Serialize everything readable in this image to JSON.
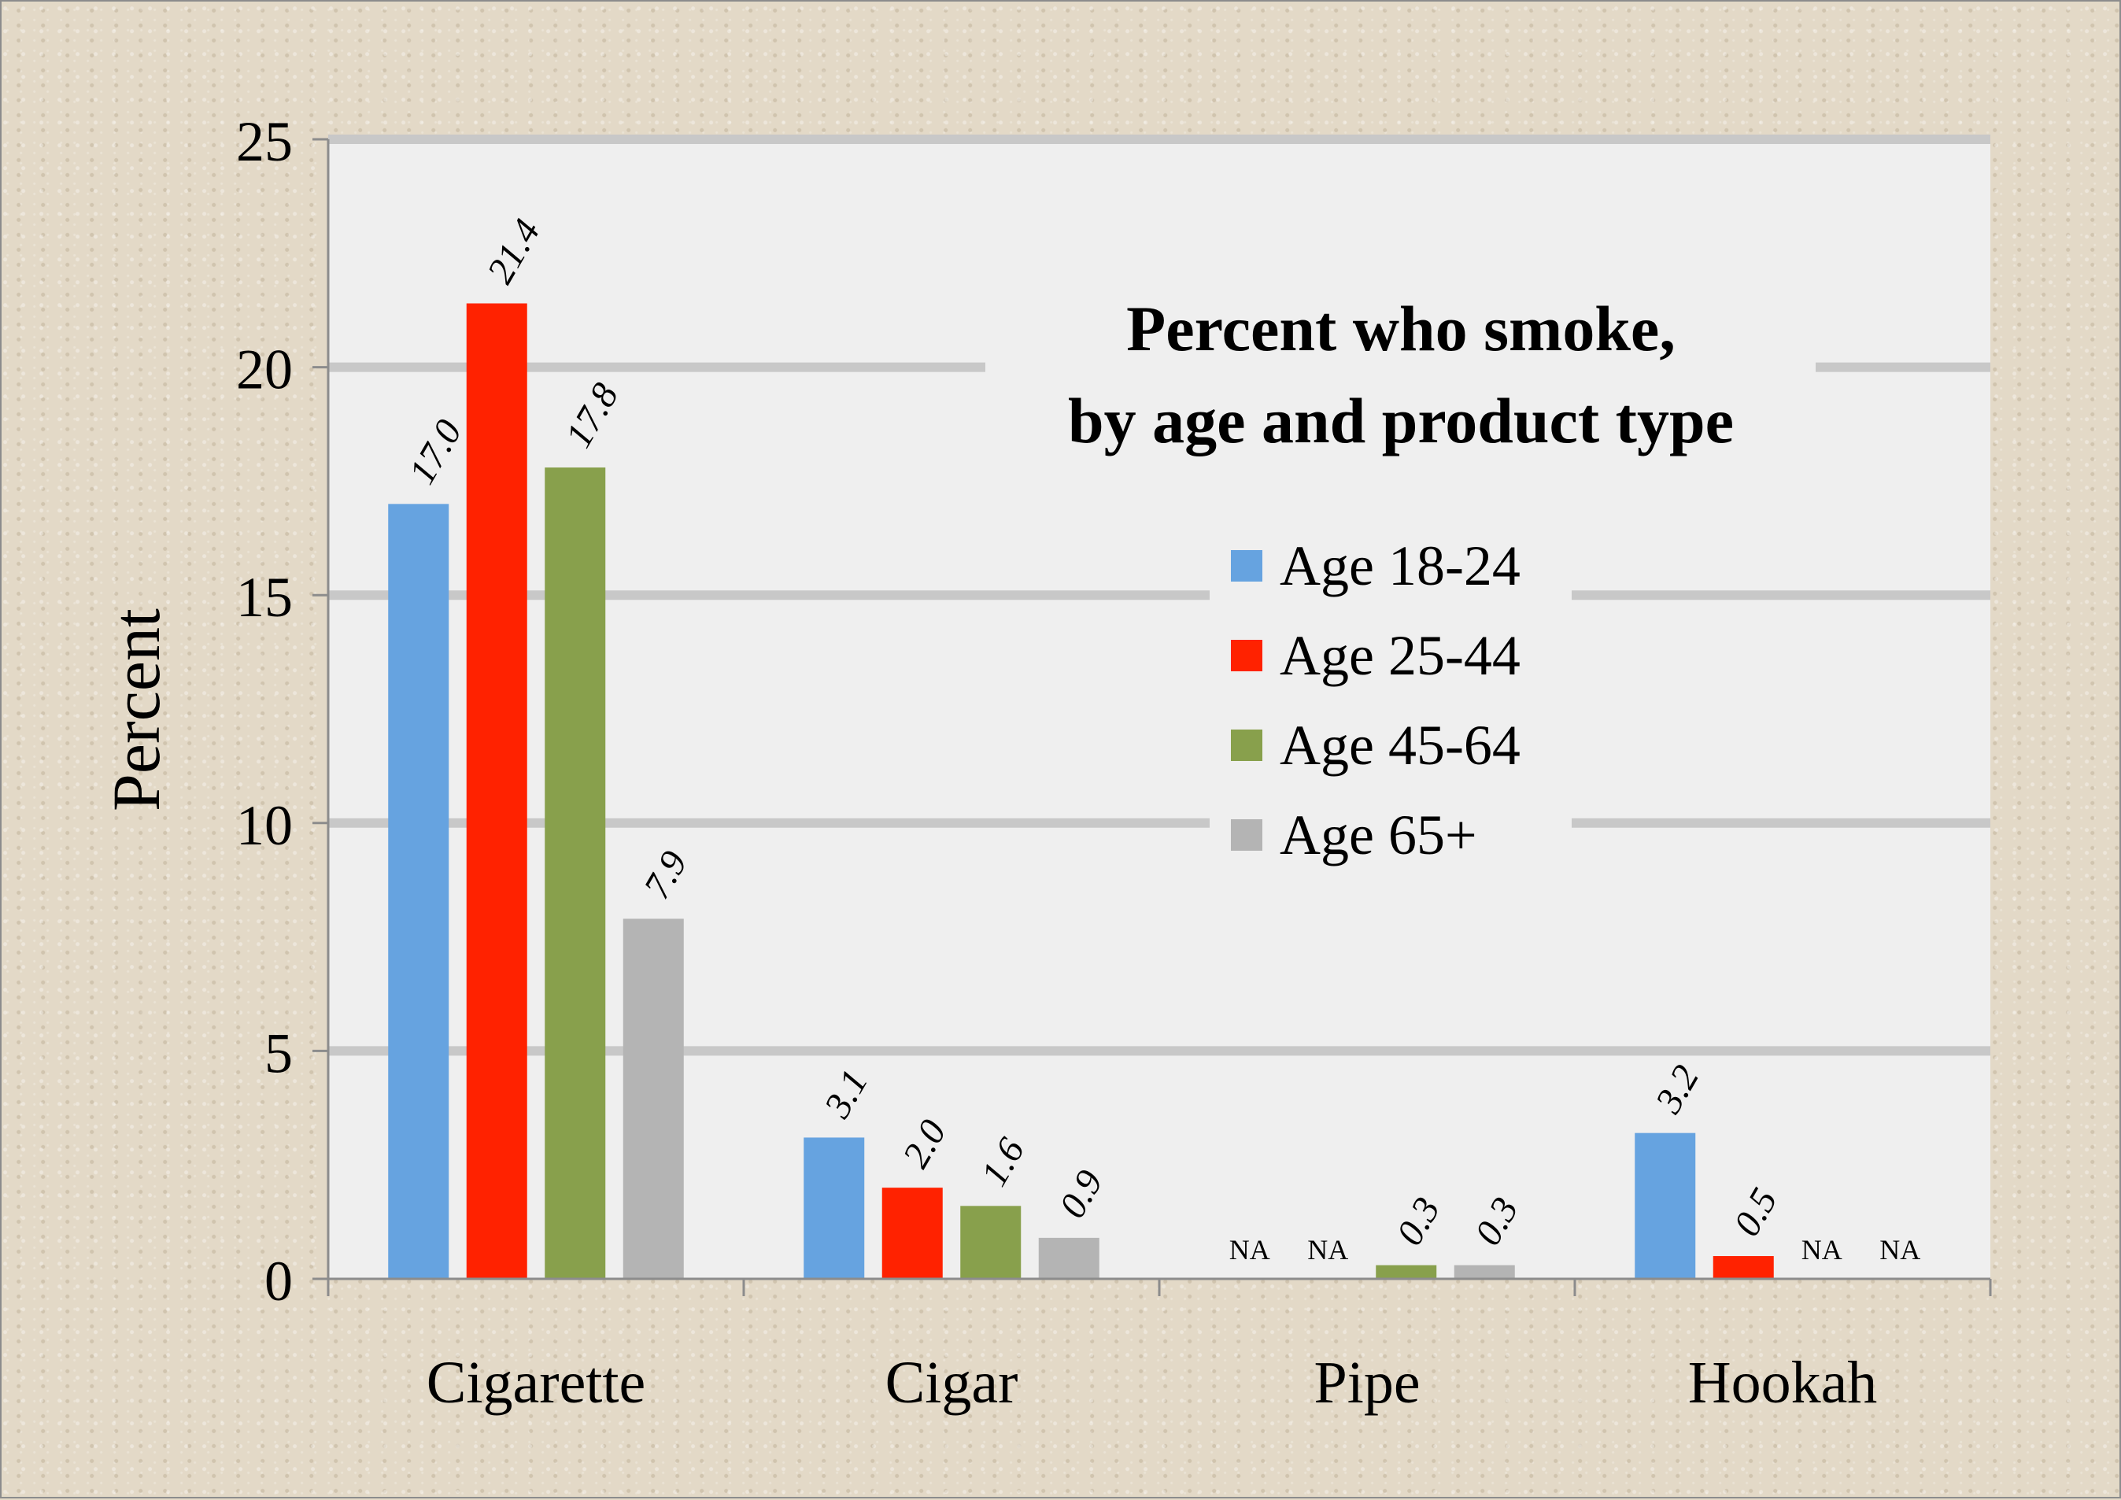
{
  "chart_data": {
    "type": "bar",
    "title": "Percent who smoke,",
    "subtitle": "by age and product type",
    "ylabel": "Percent",
    "xlabel": "",
    "ylim": [
      0,
      25
    ],
    "yticks": [
      0,
      5,
      10,
      15,
      20,
      25
    ],
    "grid": true,
    "legend_placement": "upper-right",
    "categories": [
      "Cigarette",
      "Cigar",
      "Pipe",
      "Hookah"
    ],
    "series": [
      {
        "name": "Age 18-24",
        "color": "#66a3e0",
        "values": [
          17.0,
          3.1,
          null,
          3.2
        ],
        "labels": [
          "17.0",
          "3.1",
          "NA",
          "3.2"
        ]
      },
      {
        "name": "Age 25-44",
        "color": "#ff2200",
        "values": [
          21.4,
          2.0,
          null,
          0.5
        ],
        "labels": [
          "21.4",
          "2.0",
          "NA",
          "0.5"
        ]
      },
      {
        "name": "Age 45-64",
        "color": "#88a04c",
        "values": [
          17.8,
          1.6,
          0.3,
          null
        ],
        "labels": [
          "17.8",
          "1.6",
          "0.3",
          "NA"
        ]
      },
      {
        "name": "Age 65+",
        "color": "#b4b4b4",
        "values": [
          7.9,
          0.9,
          0.3,
          null
        ],
        "labels": [
          "7.9",
          "0.9",
          "0.3",
          "NA"
        ]
      }
    ]
  }
}
